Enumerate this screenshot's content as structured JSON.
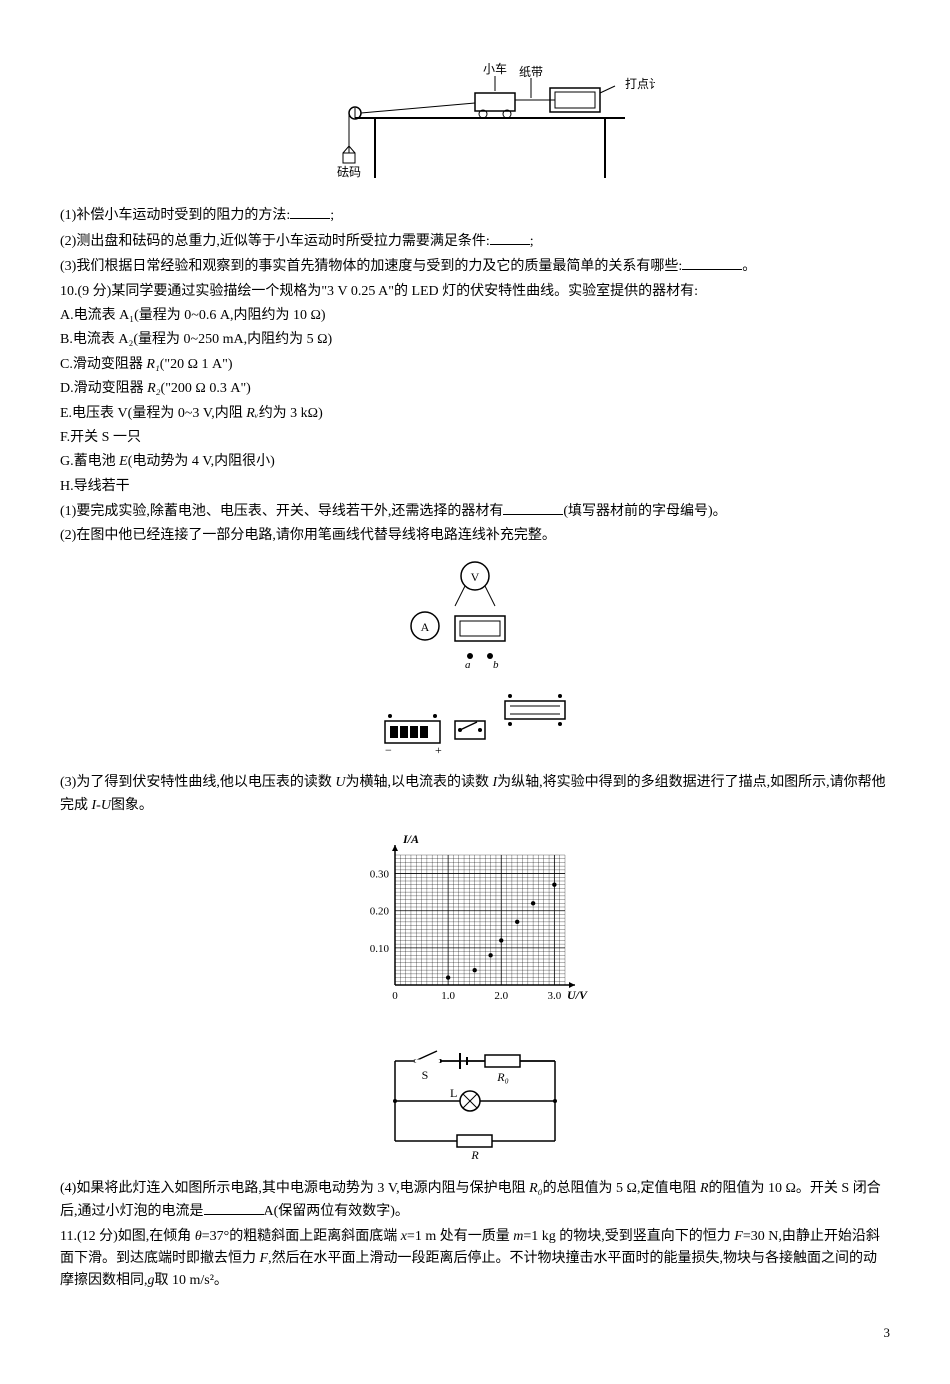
{
  "fig1": {
    "labels": {
      "car": "小车",
      "tape": "纸带",
      "timer": "打点计时器",
      "weight": "砝码"
    }
  },
  "q9": {
    "p1": "(1)补偿小车运动时受到的阻力的方法:",
    "p1_end": ";",
    "p2": "(2)测出盘和砝码的总重力,近似等于小车运动时所受拉力需要满足条件:",
    "p2_end": ";",
    "p3": "(3)我们根据日常经验和观察到的事实首先猜物体的加速度与受到的力及它的质量最简单的关系有哪些:",
    "p3_end": "。"
  },
  "q10": {
    "intro": "10.(9 分)某同学要通过实验描绘一个规格为\"3 V  0.25 A\"的 LED 灯的伏安特性曲线。实验室提供的器材有:",
    "A": "A.电流表 A₁(量程为 0~0.6 A,内阻约为 10 Ω)",
    "B": "B.电流表 A₂(量程为 0~250 mA,内阻约为 5 Ω)",
    "C_pre": "C.滑动变阻器 ",
    "C_post": "(\"20 Ω  1 A\")",
    "D_pre": "D.滑动变阻器 ",
    "D_post": "(\"200 Ω  0.3 A\")",
    "E_pre": " E.电压表 V(量程为 0~3 V,内阻 ",
    "E_post": "约为 3 kΩ)",
    "F": "F.开关 S 一只",
    "G_pre": "G.蓄电池 ",
    "G_post": "(电动势为 4 V,内阻很小)",
    "H": "H.导线若干",
    "p1": "(1)要完成实验,除蓄电池、电压表、开关、导线若干外,还需选择的器材有",
    "p1_end": "(填写器材前的字母编号)。",
    "p2": "(2)在图中他已经连接了一部分电路,请你用笔画线代替导线将电路连线补充完整。",
    "p3_pre": "(3)为了得到伏安特性曲线,他以电压表的读数 ",
    "p3_mid": "为横轴,以电流表的读数 ",
    "p3_mid2": "为纵轴,将实验中得到的多组数据进行了描点,如图所示,请你帮他完成 ",
    "p3_end": "图象。",
    "p4_pre": "(4)如果将此灯连入如图所示电路,其中电源电动势为 3 V,电源内阻与保护电阻 ",
    "p4_mid": "的总阻值为 5 Ω,定值电阻 ",
    "p4_mid2": "的阻值为 10 Ω。开关 S 闭合后,通过小灯泡的电流是",
    "p4_end": "A(保留两位有效数字)。"
  },
  "graph": {
    "y_label": "I/A",
    "x_label": "U/V",
    "y_ticks": [
      "0.10",
      "0.20",
      "0.30"
    ],
    "x_ticks": [
      "0",
      "1.0",
      "2.0",
      "3.0"
    ],
    "bg": "#ffffff",
    "grid_color": "#000000",
    "points": [
      {
        "x": 1.0,
        "y": 0.02
      },
      {
        "x": 1.5,
        "y": 0.04
      },
      {
        "x": 1.8,
        "y": 0.08
      },
      {
        "x": 2.0,
        "y": 0.12
      },
      {
        "x": 2.3,
        "y": 0.17
      },
      {
        "x": 2.6,
        "y": 0.22
      },
      {
        "x": 3.0,
        "y": 0.27
      }
    ],
    "xlim": [
      0,
      3.2
    ],
    "ylim": [
      0,
      0.35
    ]
  },
  "circuit_labels": {
    "S": "S",
    "R0": "R₀",
    "L": "L",
    "R": "R"
  },
  "q11": {
    "text_pre": "11.(12 分)如图,在倾角 ",
    "theta": "θ",
    "text_1": "=37°的粗糙斜面上距离斜面底端 ",
    "x": "x",
    "text_2": "=1 m 处有一质量 ",
    "m": "m",
    "text_3": "=1 kg 的物块,受到竖直向下的恒力 ",
    "F": "F",
    "text_4": "=30 N,由静止开始沿斜面下滑。到达底端时即撤去恒力 ",
    "text_5": ",然后在水平面上滑动一段距离后停止。不计物块撞击水平面时的能量损失,物块与各接触面之间的动摩擦因数相同,",
    "g": "g",
    "text_6": "取 10 m/s²。"
  },
  "page_number": "3",
  "symbols": {
    "R1": "R₁",
    "R2": "R₂",
    "Rv": "Rᵥ",
    "E": "E",
    "U": "U",
    "I": "I",
    "IU": "I-U",
    "R0": "R₀",
    "R": "R",
    "a": "a",
    "b": "b"
  }
}
